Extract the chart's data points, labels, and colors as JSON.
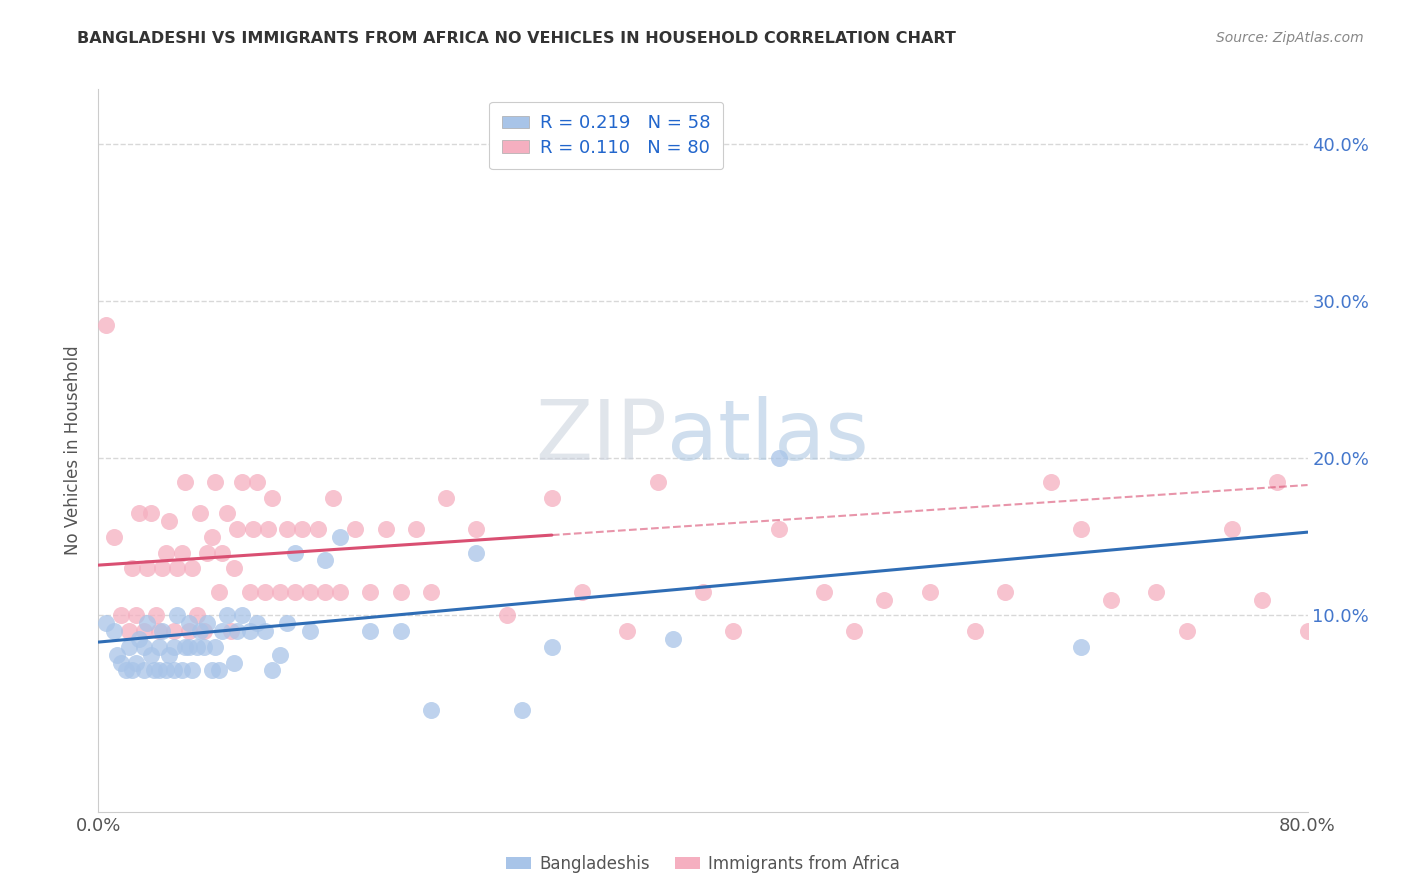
{
  "title": "BANGLADESHI VS IMMIGRANTS FROM AFRICA NO VEHICLES IN HOUSEHOLD CORRELATION CHART",
  "source": "Source: ZipAtlas.com",
  "ylabel": "No Vehicles in Household",
  "xlim": [
    0.0,
    0.8
  ],
  "ylim": [
    -0.025,
    0.435
  ],
  "ytick_vals": [
    0.1,
    0.2,
    0.3,
    0.4
  ],
  "ytick_labels": [
    "10.0%",
    "20.0%",
    "30.0%",
    "40.0%"
  ],
  "xtick_vals": [
    0.0,
    0.1,
    0.2,
    0.3,
    0.4,
    0.5,
    0.6,
    0.7,
    0.8
  ],
  "xtick_labels_show": {
    "0.0": "0.0%",
    "0.8": "80.0%"
  },
  "series1_name": "Bangladeshis",
  "series2_name": "Immigrants from Africa",
  "color1": "#a8c4e8",
  "color2": "#f5afc0",
  "line_color1": "#2f6db5",
  "line_color2": "#d94f72",
  "line_dash_color1": "#aec6e8",
  "line_dash_color2": "#f0a0b8",
  "watermark_color": "#d0dcee",
  "background_color": "#ffffff",
  "grid_color": "#d8d8d8",
  "R1": 0.219,
  "N1": 58,
  "R2": 0.11,
  "N2": 80,
  "legend_text_color": "#2266cc",
  "axis_text_color": "#4477cc",
  "title_color": "#333333",
  "source_color": "#888888",
  "blue_line_y0": 0.083,
  "blue_line_y1": 0.153,
  "pink_line_y0": 0.132,
  "pink_line_y1": 0.183,
  "bangladeshi_x": [
    0.005,
    0.01,
    0.012,
    0.015,
    0.018,
    0.02,
    0.022,
    0.025,
    0.027,
    0.03,
    0.03,
    0.032,
    0.035,
    0.037,
    0.04,
    0.04,
    0.042,
    0.045,
    0.047,
    0.05,
    0.05,
    0.052,
    0.055,
    0.057,
    0.06,
    0.06,
    0.062,
    0.065,
    0.067,
    0.07,
    0.072,
    0.075,
    0.077,
    0.08,
    0.082,
    0.085,
    0.09,
    0.092,
    0.095,
    0.1,
    0.105,
    0.11,
    0.115,
    0.12,
    0.125,
    0.13,
    0.14,
    0.15,
    0.16,
    0.18,
    0.2,
    0.22,
    0.25,
    0.28,
    0.3,
    0.38,
    0.45,
    0.65
  ],
  "bangladeshi_y": [
    0.095,
    0.09,
    0.075,
    0.07,
    0.065,
    0.08,
    0.065,
    0.07,
    0.085,
    0.065,
    0.08,
    0.095,
    0.075,
    0.065,
    0.065,
    0.08,
    0.09,
    0.065,
    0.075,
    0.065,
    0.08,
    0.1,
    0.065,
    0.08,
    0.08,
    0.095,
    0.065,
    0.08,
    0.09,
    0.08,
    0.095,
    0.065,
    0.08,
    0.065,
    0.09,
    0.1,
    0.07,
    0.09,
    0.1,
    0.09,
    0.095,
    0.09,
    0.065,
    0.075,
    0.095,
    0.14,
    0.09,
    0.135,
    0.15,
    0.09,
    0.09,
    0.04,
    0.14,
    0.04,
    0.08,
    0.085,
    0.2,
    0.08
  ],
  "africa_x": [
    0.005,
    0.01,
    0.015,
    0.02,
    0.022,
    0.025,
    0.027,
    0.03,
    0.032,
    0.035,
    0.038,
    0.04,
    0.042,
    0.045,
    0.047,
    0.05,
    0.052,
    0.055,
    0.057,
    0.06,
    0.062,
    0.065,
    0.067,
    0.07,
    0.072,
    0.075,
    0.077,
    0.08,
    0.082,
    0.085,
    0.088,
    0.09,
    0.092,
    0.095,
    0.1,
    0.102,
    0.105,
    0.11,
    0.112,
    0.115,
    0.12,
    0.125,
    0.13,
    0.135,
    0.14,
    0.145,
    0.15,
    0.155,
    0.16,
    0.17,
    0.18,
    0.19,
    0.2,
    0.21,
    0.22,
    0.23,
    0.25,
    0.27,
    0.3,
    0.32,
    0.35,
    0.37,
    0.4,
    0.42,
    0.45,
    0.48,
    0.5,
    0.52,
    0.55,
    0.58,
    0.6,
    0.63,
    0.65,
    0.67,
    0.7,
    0.72,
    0.75,
    0.77,
    0.78,
    0.8
  ],
  "africa_y": [
    0.285,
    0.15,
    0.1,
    0.09,
    0.13,
    0.1,
    0.165,
    0.09,
    0.13,
    0.165,
    0.1,
    0.09,
    0.13,
    0.14,
    0.16,
    0.09,
    0.13,
    0.14,
    0.185,
    0.09,
    0.13,
    0.1,
    0.165,
    0.09,
    0.14,
    0.15,
    0.185,
    0.115,
    0.14,
    0.165,
    0.09,
    0.13,
    0.155,
    0.185,
    0.115,
    0.155,
    0.185,
    0.115,
    0.155,
    0.175,
    0.115,
    0.155,
    0.115,
    0.155,
    0.115,
    0.155,
    0.115,
    0.175,
    0.115,
    0.155,
    0.115,
    0.155,
    0.115,
    0.155,
    0.115,
    0.175,
    0.155,
    0.1,
    0.175,
    0.115,
    0.09,
    0.185,
    0.115,
    0.09,
    0.155,
    0.115,
    0.09,
    0.11,
    0.115,
    0.09,
    0.115,
    0.185,
    0.155,
    0.11,
    0.115,
    0.09,
    0.155,
    0.11,
    0.185,
    0.09
  ]
}
